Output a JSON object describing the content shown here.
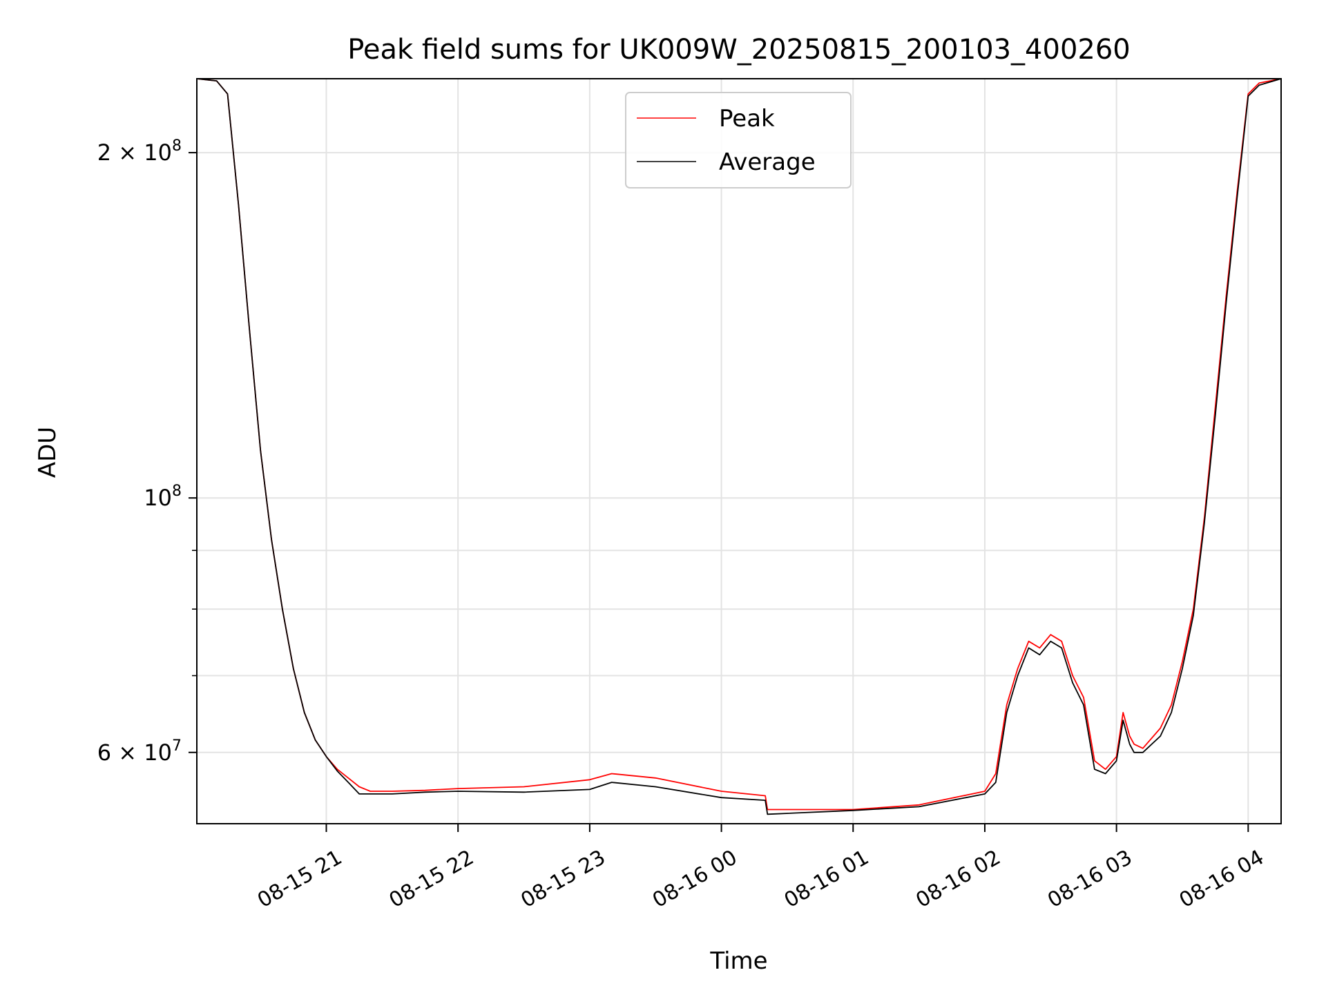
{
  "chart_data": {
    "type": "line",
    "title": "Peak field sums for UK009W_20250815_200103_400260",
    "xlabel": "Time",
    "ylabel": "ADU",
    "yscale": "log",
    "xlim": [
      "2025-08-15T20:01:00",
      "2025-08-16T04:15:00"
    ],
    "ylim": [
      52000000,
      232000000
    ],
    "x_ticks": [
      {
        "value": "2025-08-15T21:00:00",
        "label": "08-15 21"
      },
      {
        "value": "2025-08-15T22:00:00",
        "label": "08-15 22"
      },
      {
        "value": "2025-08-15T23:00:00",
        "label": "08-15 23"
      },
      {
        "value": "2025-08-16T00:00:00",
        "label": "08-16 00"
      },
      {
        "value": "2025-08-16T01:00:00",
        "label": "08-16 01"
      },
      {
        "value": "2025-08-16T02:00:00",
        "label": "08-16 02"
      },
      {
        "value": "2025-08-16T03:00:00",
        "label": "08-16 03"
      },
      {
        "value": "2025-08-16T04:00:00",
        "label": "08-16 04"
      }
    ],
    "y_major_ticks": [
      {
        "value": 60000000,
        "mantissa": "6",
        "exponent": "7"
      },
      {
        "value": 100000000,
        "mantissa": "",
        "exponent": "8"
      },
      {
        "value": 200000000,
        "mantissa": "2",
        "exponent": "8"
      }
    ],
    "y_minor_ticks": [
      70000000,
      80000000,
      90000000
    ],
    "grid": true,
    "legend": {
      "position": "top-center"
    },
    "series": [
      {
        "name": "Peak",
        "color": "#ff0000",
        "x": [
          "2025-08-15T20:01:00",
          "2025-08-15T20:10:00",
          "2025-08-15T20:15:00",
          "2025-08-15T20:20:00",
          "2025-08-15T20:25:00",
          "2025-08-15T20:30:00",
          "2025-08-15T20:35:00",
          "2025-08-15T20:40:00",
          "2025-08-15T20:45:00",
          "2025-08-15T20:50:00",
          "2025-08-15T20:55:00",
          "2025-08-15T21:00:00",
          "2025-08-15T21:05:00",
          "2025-08-15T21:10:00",
          "2025-08-15T21:15:00",
          "2025-08-15T21:20:00",
          "2025-08-15T21:30:00",
          "2025-08-15T21:45:00",
          "2025-08-15T22:00:00",
          "2025-08-15T22:30:00",
          "2025-08-15T23:00:00",
          "2025-08-15T23:10:00",
          "2025-08-15T23:30:00",
          "2025-08-16T00:00:00",
          "2025-08-16T00:20:00",
          "2025-08-16T00:21:00",
          "2025-08-16T01:00:00",
          "2025-08-16T01:30:00",
          "2025-08-16T02:00:00",
          "2025-08-16T02:05:00",
          "2025-08-16T02:10:00",
          "2025-08-16T02:15:00",
          "2025-08-16T02:20:00",
          "2025-08-16T02:25:00",
          "2025-08-16T02:30:00",
          "2025-08-16T02:35:00",
          "2025-08-16T02:40:00",
          "2025-08-16T02:45:00",
          "2025-08-16T02:50:00",
          "2025-08-16T02:55:00",
          "2025-08-16T03:00:00",
          "2025-08-16T03:03:00",
          "2025-08-16T03:06:00",
          "2025-08-16T03:08:00",
          "2025-08-16T03:12:00",
          "2025-08-16T03:20:00",
          "2025-08-16T03:25:00",
          "2025-08-16T03:30:00",
          "2025-08-16T03:35:00",
          "2025-08-16T03:40:00",
          "2025-08-16T03:45:00",
          "2025-08-16T03:50:00",
          "2025-08-16T03:55:00",
          "2025-08-16T04:00:00",
          "2025-08-16T04:05:00",
          "2025-08-16T04:15:00"
        ],
        "y": [
          232000000,
          231000000,
          225000000,
          180000000,
          140000000,
          110000000,
          92000000,
          80000000,
          71000000,
          65000000,
          61500000,
          59500000,
          58000000,
          57000000,
          56000000,
          55500000,
          55500000,
          55600000,
          55800000,
          56000000,
          56800000,
          57500000,
          57000000,
          55500000,
          55000000,
          53500000,
          53500000,
          54000000,
          55500000,
          57500000,
          66000000,
          71000000,
          75000000,
          74000000,
          76000000,
          75000000,
          70000000,
          67000000,
          59000000,
          58000000,
          59500000,
          65000000,
          62000000,
          61000000,
          60500000,
          63000000,
          66000000,
          72000000,
          80000000,
          96000000,
          120000000,
          150000000,
          185000000,
          225000000,
          230000000,
          232000000
        ]
      },
      {
        "name": "Average",
        "color": "#000000",
        "x": [
          "2025-08-15T20:01:00",
          "2025-08-15T20:10:00",
          "2025-08-15T20:15:00",
          "2025-08-15T20:20:00",
          "2025-08-15T20:25:00",
          "2025-08-15T20:30:00",
          "2025-08-15T20:35:00",
          "2025-08-15T20:40:00",
          "2025-08-15T20:45:00",
          "2025-08-15T20:50:00",
          "2025-08-15T20:55:00",
          "2025-08-15T21:00:00",
          "2025-08-15T21:05:00",
          "2025-08-15T21:10:00",
          "2025-08-15T21:15:00",
          "2025-08-15T21:20:00",
          "2025-08-15T21:30:00",
          "2025-08-15T21:45:00",
          "2025-08-15T22:00:00",
          "2025-08-15T22:30:00",
          "2025-08-15T23:00:00",
          "2025-08-15T23:10:00",
          "2025-08-15T23:30:00",
          "2025-08-16T00:00:00",
          "2025-08-16T00:20:00",
          "2025-08-16T00:21:00",
          "2025-08-16T01:00:00",
          "2025-08-16T01:30:00",
          "2025-08-16T02:00:00",
          "2025-08-16T02:05:00",
          "2025-08-16T02:10:00",
          "2025-08-16T02:15:00",
          "2025-08-16T02:20:00",
          "2025-08-16T02:25:00",
          "2025-08-16T02:30:00",
          "2025-08-16T02:35:00",
          "2025-08-16T02:40:00",
          "2025-08-16T02:45:00",
          "2025-08-16T02:50:00",
          "2025-08-16T02:55:00",
          "2025-08-16T03:00:00",
          "2025-08-16T03:03:00",
          "2025-08-16T03:06:00",
          "2025-08-16T03:08:00",
          "2025-08-16T03:12:00",
          "2025-08-16T03:20:00",
          "2025-08-16T03:25:00",
          "2025-08-16T03:30:00",
          "2025-08-16T03:35:00",
          "2025-08-16T03:40:00",
          "2025-08-16T03:45:00",
          "2025-08-16T03:50:00",
          "2025-08-16T03:55:00",
          "2025-08-16T04:00:00",
          "2025-08-16T04:05:00",
          "2025-08-16T04:15:00"
        ],
        "y": [
          232000000,
          231000000,
          225000000,
          180000000,
          140000000,
          110000000,
          92000000,
          80000000,
          71000000,
          65000000,
          61500000,
          59500000,
          57800000,
          56500000,
          55200000,
          55200000,
          55200000,
          55400000,
          55500000,
          55400000,
          55700000,
          56500000,
          56000000,
          54800000,
          54500000,
          53000000,
          53400000,
          53800000,
          55200000,
          56500000,
          65000000,
          70000000,
          74000000,
          73000000,
          75000000,
          74000000,
          69000000,
          66000000,
          58000000,
          57500000,
          59000000,
          64000000,
          61000000,
          60000000,
          60000000,
          62000000,
          65000000,
          71000000,
          79000000,
          95000000,
          118000000,
          148000000,
          183000000,
          224000000,
          229000000,
          232000000
        ]
      }
    ]
  }
}
